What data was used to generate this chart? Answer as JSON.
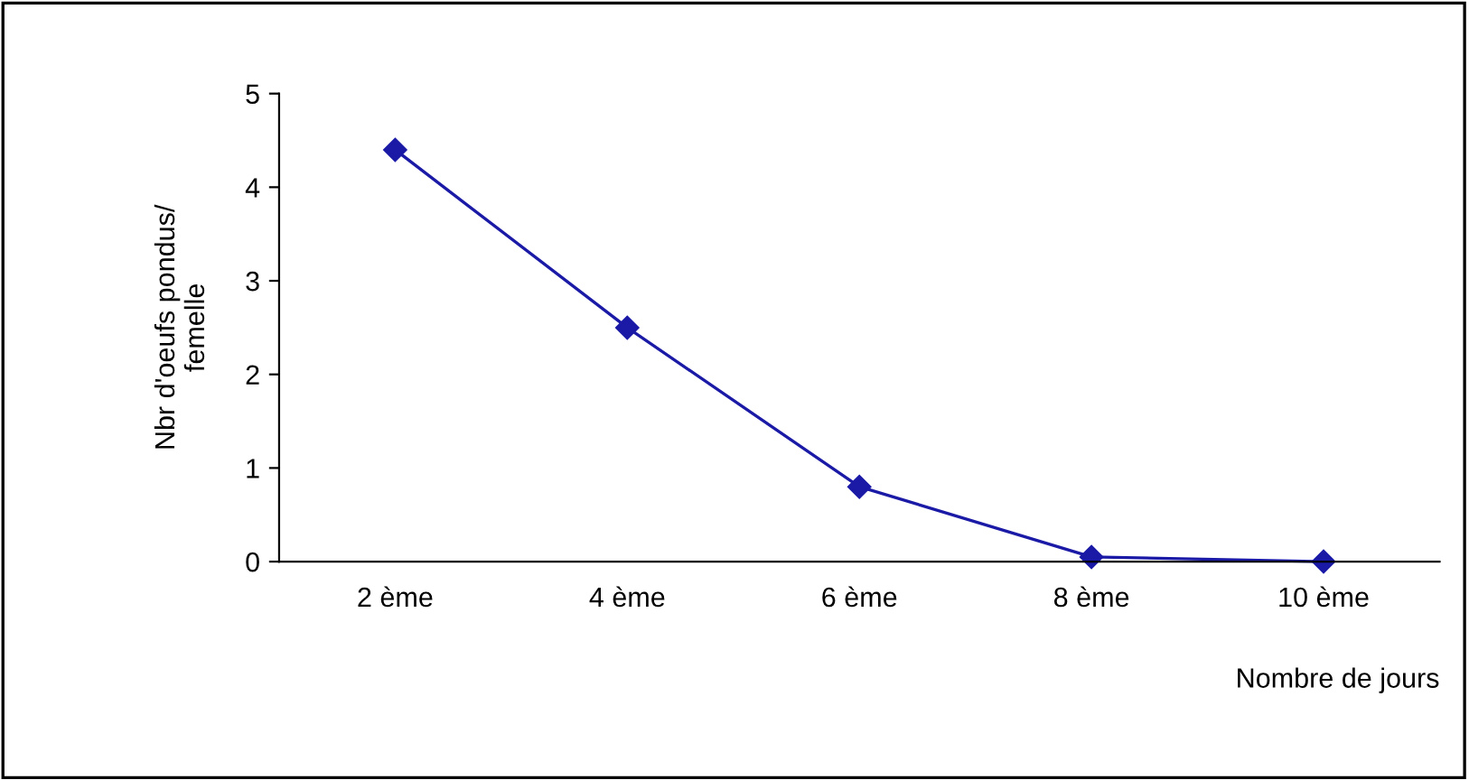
{
  "chart_data": {
    "type": "line",
    "xlabel": "Nombre de jours",
    "ylabel": "Nbr d'oeufs pondus/\nfemelle",
    "categories": [
      "2 ème",
      "4 ème",
      "6 ème",
      "8 ème",
      "10 ème"
    ],
    "series": [
      {
        "color": "#1a1aa6",
        "values": [
          4.4,
          2.5,
          0.8,
          0.05,
          0
        ]
      }
    ],
    "ylim": [
      0,
      5
    ],
    "yticks": [
      0,
      1,
      2,
      3,
      4,
      5
    ],
    "grid": false,
    "legend": false,
    "marker": "diamond",
    "line_style": "solid"
  }
}
